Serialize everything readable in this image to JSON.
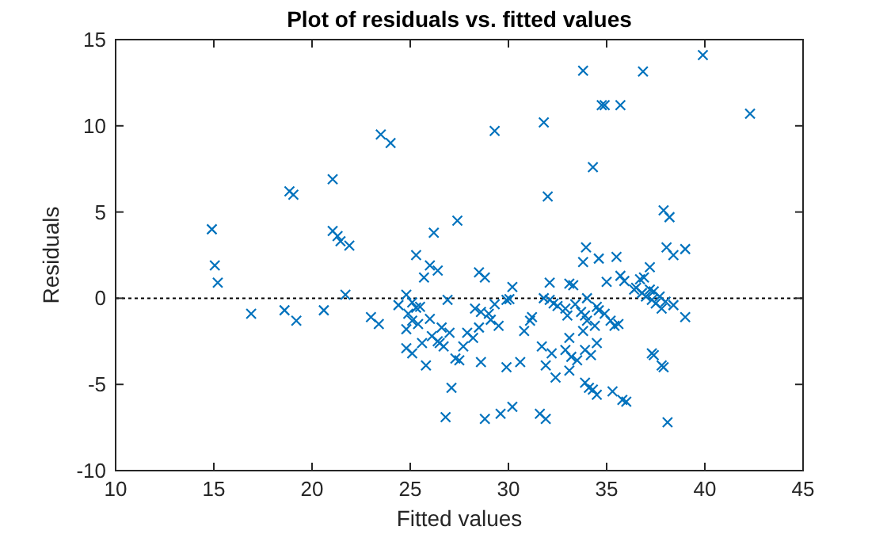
{
  "chart_data": {
    "type": "scatter",
    "title": "Plot of residuals vs. fitted values",
    "xlabel": "Fitted values",
    "ylabel": "Residuals",
    "xlim": [
      10,
      45
    ],
    "xticks": [
      10,
      15,
      20,
      25,
      30,
      35,
      40,
      45
    ],
    "ylim": [
      -10,
      15
    ],
    "yticks": [
      -10,
      -5,
      0,
      5,
      10,
      15
    ],
    "grid": false,
    "marker": "cross",
    "ref_lines": [
      {
        "axis": "y",
        "value": 0,
        "color": "#000000",
        "line_style": "dotted"
      }
    ],
    "series": [
      {
        "color": "#0072bd",
        "x": [
          14.9,
          15.05,
          15.2,
          16.9,
          18.6,
          18.85,
          19.05,
          19.2,
          20.6,
          21.05,
          21.05,
          21.3,
          21.45,
          21.9,
          21.7,
          23.0,
          23.4,
          23.5,
          24.0,
          25.3,
          25.7,
          26.0,
          26.4,
          26.2,
          27.4,
          26.9,
          24.8,
          24.4,
          25.1,
          25.3,
          25.5,
          24.9,
          25.1,
          25.4,
          26.0,
          24.8,
          26.6,
          26.1,
          26.4,
          26.5,
          26.7,
          27.0,
          25.6,
          24.8,
          25.1,
          25.8,
          27.3,
          27.5,
          27.7,
          27.9,
          28.2,
          27.1,
          26.8,
          29.0,
          28.5,
          28.8,
          28.3,
          28.6,
          29.3,
          28.5,
          29.1,
          29.5,
          30.2,
          29.9,
          30.05,
          31.1,
          31.2,
          30.8,
          28.6,
          29.9,
          30.6,
          28.8,
          29.6,
          30.2,
          31.6,
          31.9,
          29.3,
          31.8,
          32.0,
          32.1,
          31.8,
          32.1,
          32.3,
          32.5,
          32.9,
          33.0,
          33.1,
          33.3,
          33.4,
          33.7,
          33.9,
          34.0,
          34.5,
          34.6,
          34.9,
          35.2,
          35.4,
          35.6,
          34.4,
          33.8,
          33.1,
          31.7,
          32.2,
          32.9,
          33.2,
          33.5,
          33.9,
          34.2,
          34.5,
          31.9,
          32.4,
          33.1,
          33.9,
          34.1,
          34.3,
          34.5,
          35.3,
          35.8,
          36.0,
          37.3,
          37.4,
          37.8,
          37.9,
          38.1,
          34.0,
          33.8,
          33.95,
          33.8,
          34.6,
          35.5,
          34.3,
          34.75,
          34.9,
          35.7,
          36.85,
          39.9,
          42.3,
          37.9,
          38.2,
          37.2,
          38.05,
          38.4,
          39.0,
          35.0,
          35.7,
          35.9,
          36.4,
          36.5,
          36.7,
          36.9,
          36.8,
          37.0,
          37.2,
          37.3,
          37.4,
          37.5,
          37.7,
          37.8,
          38.0,
          38.4,
          39.0
        ],
        "values": [
          4.0,
          1.9,
          0.9,
          -0.9,
          -0.7,
          6.2,
          6.0,
          -1.3,
          -0.7,
          6.9,
          3.9,
          3.6,
          3.3,
          3.05,
          0.2,
          -1.1,
          -1.5,
          9.5,
          9.0,
          2.5,
          1.2,
          1.9,
          1.6,
          3.8,
          4.5,
          -0.1,
          0.2,
          -0.4,
          -0.25,
          -0.55,
          -0.5,
          -0.9,
          -1.3,
          -1.5,
          -1.2,
          -1.8,
          -1.7,
          -2.2,
          -2.5,
          -2.6,
          -2.8,
          -2.0,
          -2.6,
          -2.9,
          -3.2,
          -3.9,
          -3.5,
          -3.6,
          -2.8,
          -2.0,
          -2.3,
          -5.2,
          -6.9,
          -0.9,
          1.5,
          1.2,
          -0.6,
          -0.8,
          -0.35,
          -1.7,
          -1.25,
          -1.6,
          0.65,
          -0.1,
          -0.05,
          -1.3,
          -1.1,
          -1.9,
          -3.7,
          -4.0,
          -3.7,
          -7.0,
          -6.7,
          -6.3,
          -6.7,
          -7.0,
          9.7,
          10.2,
          5.9,
          0.9,
          0.0,
          -0.1,
          -0.3,
          -0.45,
          -0.6,
          -1.0,
          0.85,
          0.75,
          -0.35,
          -0.8,
          -1.0,
          0.0,
          -0.5,
          -0.7,
          -0.9,
          -1.3,
          -1.6,
          -1.5,
          -1.6,
          -1.9,
          -2.3,
          -2.8,
          -3.2,
          -3.0,
          -3.4,
          -3.6,
          -3.0,
          -3.3,
          -2.6,
          -3.9,
          -4.6,
          -4.2,
          -4.9,
          -5.2,
          -5.3,
          -5.6,
          -5.4,
          -5.9,
          -6.0,
          -3.2,
          -3.3,
          -3.9,
          -4.0,
          -7.2,
          -1.3,
          13.2,
          2.95,
          2.1,
          2.3,
          2.4,
          7.6,
          11.2,
          11.2,
          11.2,
          13.15,
          14.1,
          10.7,
          5.1,
          4.7,
          1.8,
          2.95,
          2.5,
          2.85,
          0.95,
          1.3,
          1.0,
          0.5,
          0.6,
          1.1,
          1.2,
          0.3,
          0.1,
          0.5,
          -0.1,
          0.4,
          -0.3,
          0.1,
          -0.6,
          -0.2,
          -0.4,
          -1.1
        ]
      }
    ]
  }
}
